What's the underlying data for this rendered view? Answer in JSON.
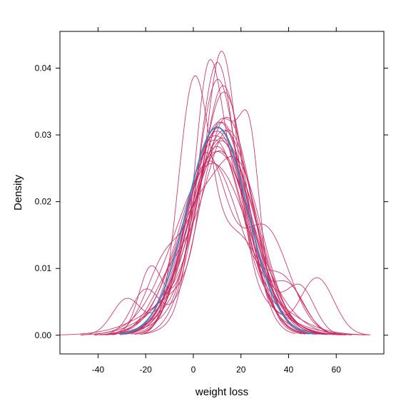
{
  "chart_data": {
    "type": "line",
    "title": "",
    "xlabel": "weight loss",
    "ylabel": "Density",
    "xlim": [
      -56,
      80
    ],
    "ylim": [
      -0.0028,
      0.0455
    ],
    "x_ticks": [
      -40,
      -20,
      0,
      20,
      40,
      60
    ],
    "x_tick_labels": [
      "-40",
      "-20",
      "0",
      "20",
      "40",
      "60"
    ],
    "y_ticks": [
      0.0,
      0.01,
      0.02,
      0.03,
      0.04
    ],
    "y_tick_labels": [
      "0.00",
      "0.01",
      "0.02",
      "0.03",
      "0.04"
    ],
    "grid": false,
    "legend": "none",
    "colors": {
      "replicate": "#C4285E",
      "original": "#3D85C6"
    },
    "series": [
      {
        "role": "original",
        "components": [
          [
            1,
            10.0,
            12.8
          ]
        ]
      },
      {
        "role": "replicate",
        "components": [
          [
            0.55,
            0,
            6.5
          ],
          [
            0.45,
            18,
            12
          ]
        ]
      },
      {
        "role": "replicate",
        "components": [
          [
            0.35,
            6,
            5.5
          ],
          [
            0.65,
            16,
            12
          ]
        ]
      },
      {
        "role": "replicate",
        "components": [
          [
            0.85,
            12,
            10.5
          ],
          [
            0.15,
            24,
            4
          ]
        ]
      },
      {
        "role": "replicate",
        "components": [
          [
            0.9,
            14,
            11
          ],
          [
            0.1,
            -20,
            6
          ]
        ]
      },
      {
        "role": "replicate",
        "components": [
          [
            0.55,
            12,
            6.5
          ],
          [
            0.45,
            8,
            20
          ]
        ]
      },
      {
        "role": "replicate",
        "components": [
          [
            1,
            10,
            14.5
          ]
        ]
      },
      {
        "role": "replicate",
        "components": [
          [
            1,
            8,
            15.5
          ]
        ]
      },
      {
        "role": "replicate",
        "components": [
          [
            1,
            12,
            13.5
          ]
        ]
      },
      {
        "role": "replicate",
        "components": [
          [
            0.7,
            18,
            11
          ],
          [
            0.3,
            -2,
            9
          ]
        ]
      },
      {
        "role": "replicate",
        "components": [
          [
            0.6,
            5,
            9
          ],
          [
            0.4,
            30,
            10
          ]
        ]
      },
      {
        "role": "replicate",
        "components": [
          [
            0.92,
            10,
            12
          ],
          [
            0.08,
            -28,
            6
          ]
        ]
      },
      {
        "role": "replicate",
        "components": [
          [
            0.88,
            9,
            12
          ],
          [
            0.12,
            40,
            7
          ]
        ]
      },
      {
        "role": "replicate",
        "components": [
          [
            1,
            13,
            13
          ]
        ]
      },
      {
        "role": "replicate",
        "components": [
          [
            0.8,
            15,
            10.5
          ],
          [
            0.2,
            -8,
            9
          ]
        ]
      },
      {
        "role": "replicate",
        "components": [
          [
            0.5,
            4,
            9
          ],
          [
            0.5,
            20,
            10
          ]
        ]
      },
      {
        "role": "replicate",
        "components": [
          [
            0.6,
            10,
            8
          ],
          [
            0.4,
            16,
            18
          ]
        ]
      },
      {
        "role": "replicate",
        "components": [
          [
            0.88,
            12,
            11
          ],
          [
            0.12,
            -18,
            5
          ]
        ]
      },
      {
        "role": "replicate",
        "components": [
          [
            0.85,
            7,
            13
          ],
          [
            0.15,
            38,
            8
          ]
        ]
      },
      {
        "role": "replicate",
        "components": [
          [
            0.7,
            14,
            9
          ],
          [
            0.3,
            0,
            13
          ]
        ]
      },
      {
        "role": "replicate",
        "components": [
          [
            0.5,
            10,
            7
          ],
          [
            0.5,
            12,
            16
          ]
        ]
      },
      {
        "role": "replicate",
        "components": [
          [
            0.9,
            11,
            13
          ],
          [
            0.1,
            45,
            6
          ]
        ]
      },
      {
        "role": "replicate",
        "components": [
          [
            1,
            11,
            12.5
          ]
        ]
      },
      {
        "role": "replicate",
        "components": [
          [
            0.75,
            9,
            11
          ],
          [
            0.25,
            25,
            13
          ]
        ]
      },
      {
        "role": "replicate",
        "components": [
          [
            0.55,
            13,
            8
          ],
          [
            0.45,
            7,
            17
          ]
        ]
      },
      {
        "role": "replicate",
        "components": [
          [
            0.85,
            10,
            12
          ],
          [
            0.15,
            52,
            7
          ]
        ]
      },
      {
        "role": "replicate",
        "components": [
          [
            0.8,
            12,
            11
          ],
          [
            0.2,
            -12,
            8
          ]
        ]
      }
    ]
  }
}
